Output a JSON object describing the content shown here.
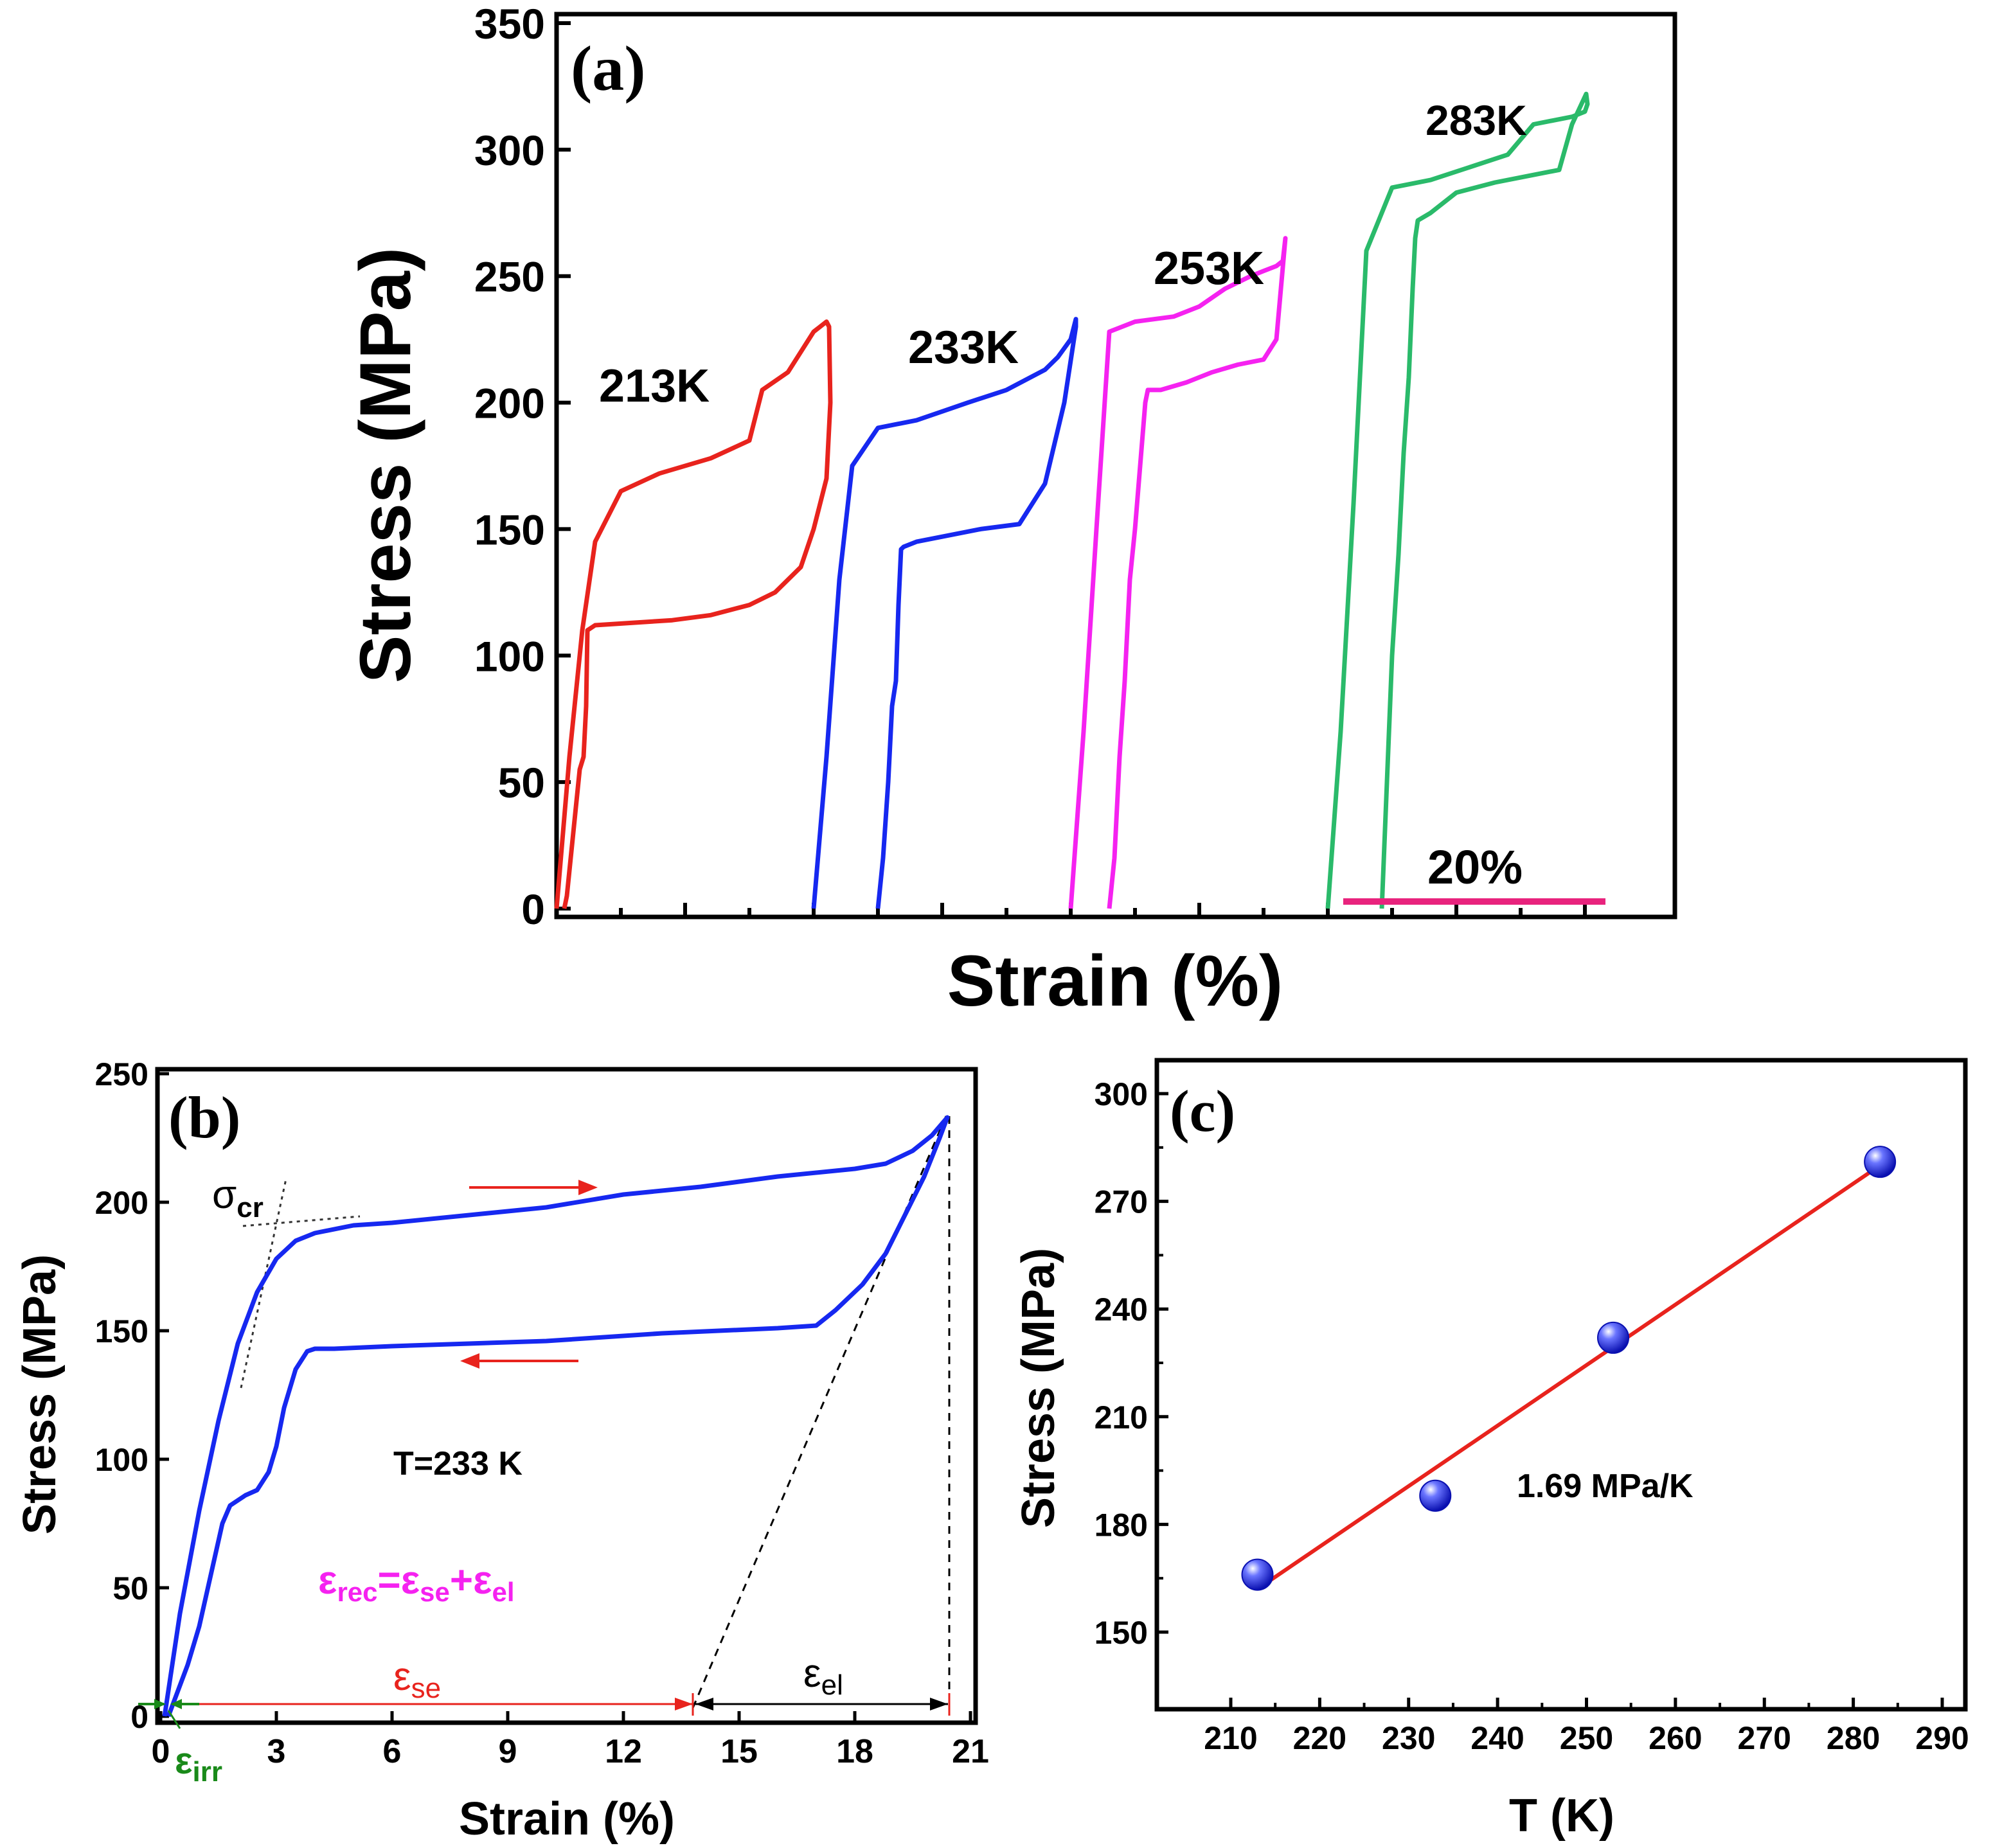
{
  "chart_data": [
    {
      "panel": "a",
      "type": "line",
      "panel_label": "(a)",
      "xlabel": "Strain (%)",
      "ylabel": "Stress (MPa)",
      "ylim": [
        0,
        350
      ],
      "yticks": [
        "0",
        "50",
        "100",
        "150",
        "200",
        "250",
        "300",
        "350"
      ],
      "scale_bar_label": "20%",
      "series": [
        {
          "name": "213K",
          "color": "#e8231d",
          "x": [
            0,
            1,
            2,
            3,
            5,
            8,
            12,
            15,
            16,
            18,
            19,
            20,
            21,
            21.2,
            21.3,
            21,
            20,
            19,
            17,
            15,
            12,
            9,
            6,
            3,
            2.4,
            2.3,
            2.1,
            1.8,
            1.5,
            1.2,
            0.8,
            0.6
          ],
          "y": [
            0,
            60,
            110,
            145,
            165,
            172,
            178,
            185,
            205,
            212,
            220,
            228,
            232,
            230,
            200,
            170,
            150,
            135,
            125,
            120,
            116,
            114,
            113,
            112,
            110,
            80,
            60,
            55,
            40,
            25,
            5,
            0
          ]
        },
        {
          "name": "233K",
          "color": "#1628f0",
          "x": [
            20,
            21,
            22,
            23,
            25,
            28,
            32,
            35,
            38,
            39,
            40,
            40.4,
            40.4,
            39.5,
            38,
            36,
            33,
            30,
            28,
            27,
            26.8,
            26.6,
            26.4,
            26.1,
            25.8,
            25.4,
            25.1,
            25.0
          ],
          "y": [
            0,
            60,
            130,
            175,
            190,
            193,
            200,
            205,
            213,
            218,
            225,
            233,
            230,
            200,
            168,
            152,
            150,
            147,
            145,
            143,
            142,
            120,
            90,
            80,
            50,
            20,
            5,
            0
          ]
        },
        {
          "name": "253K",
          "color": "#f522f0",
          "x": [
            40,
            41,
            42,
            43,
            45,
            48,
            50,
            52,
            54,
            55,
            56,
            56.5,
            56.7,
            56,
            55,
            53,
            51,
            49,
            47,
            46,
            45.8,
            45.4,
            45.0,
            44.6,
            44.2,
            43.8,
            43.4,
            43.0
          ],
          "y": [
            0,
            70,
            150,
            228,
            232,
            234,
            238,
            245,
            250,
            252,
            254,
            256,
            265,
            225,
            217,
            215,
            212,
            208,
            205,
            205,
            200,
            175,
            150,
            130,
            90,
            60,
            20,
            0
          ]
        },
        {
          "name": "283K",
          "color": "#2aba6a",
          "x": [
            60,
            61,
            62,
            63,
            65,
            68,
            71,
            74,
            76,
            79,
            80,
            80.2,
            80.1,
            79,
            78,
            76,
            73,
            70,
            68,
            67,
            66.8,
            66.6,
            66.3,
            65.9,
            65.5,
            65.0,
            64.6,
            64.2
          ],
          "y": [
            0,
            70,
            160,
            260,
            285,
            288,
            293,
            298,
            310,
            313,
            315,
            318,
            322,
            310,
            292,
            290,
            287,
            283,
            275,
            272,
            265,
            245,
            210,
            180,
            140,
            100,
            50,
            0
          ]
        }
      ]
    },
    {
      "panel": "b",
      "type": "line",
      "panel_label": "(b)",
      "xlabel": "Strain (%)",
      "ylabel": "Stress (MPa)",
      "xlim": [
        0,
        21
      ],
      "ylim": [
        0,
        250
      ],
      "xticks": [
        "0",
        "3",
        "6",
        "9",
        "12",
        "15",
        "18",
        "21"
      ],
      "yticks": [
        "0",
        "50",
        "100",
        "150",
        "200",
        "250"
      ],
      "series": [
        {
          "name": "T=233 K",
          "color": "#1628f0",
          "x": [
            0.1,
            0.5,
            1,
            1.5,
            2,
            2.5,
            3,
            3.5,
            4,
            5,
            6,
            8,
            10,
            12,
            14,
            16,
            18,
            18.8,
            19.5,
            20,
            20.4,
            20.2,
            19.8,
            19.3,
            18.8,
            18.2,
            17.5,
            17,
            16,
            13,
            10,
            8,
            6,
            4.5,
            4,
            3.8,
            3.5,
            3.2,
            3,
            2.8,
            2.5,
            2.2,
            2,
            1.8,
            1.6,
            1.3,
            1,
            0.7,
            0.4,
            0.2
          ],
          "y": [
            0,
            40,
            80,
            115,
            145,
            165,
            178,
            185,
            188,
            191,
            192,
            195,
            198,
            203,
            206,
            210,
            213,
            215,
            220,
            226,
            233,
            225,
            210,
            195,
            180,
            168,
            158,
            152,
            151,
            149,
            146,
            145,
            144,
            143,
            143,
            142,
            135,
            120,
            105,
            95,
            88,
            86,
            84,
            82,
            75,
            55,
            35,
            20,
            8,
            0
          ]
        }
      ],
      "annotations": {
        "sigma_cr": "σ",
        "sigma_cr_sub": "cr",
        "temperature": "T=233 K",
        "equation": {
          "e1": "ε",
          "s1": "rec",
          "eq": "=",
          "e2": "ε",
          "s2": "se",
          "plus": "+",
          "e3": "ε",
          "s3": "el"
        },
        "eps_se": {
          "main": "ε",
          "sub": "se"
        },
        "eps_el": {
          "main": "ε",
          "sub": "el"
        },
        "eps_irr": {
          "main": "ε",
          "sub": "irr"
        }
      },
      "colors": {
        "arrow": "#e8231d",
        "eq": "#f522f0",
        "eps_se": "#e8231d",
        "eps_el": "#000000",
        "eps_irr": "#1a8a1a"
      }
    },
    {
      "panel": "c",
      "type": "scatter",
      "panel_label": "(c)",
      "xlabel": "T (K)",
      "ylabel": "Stress (MPa)",
      "xlim": [
        205,
        295
      ],
      "ylim": [
        120,
        310
      ],
      "xticks": [
        "210",
        "220",
        "230",
        "240",
        "250",
        "260",
        "270",
        "280",
        "290"
      ],
      "yticks": [
        "150",
        "180",
        "210",
        "240",
        "270",
        "300"
      ],
      "x": [
        213,
        233,
        253,
        283
      ],
      "y": [
        166,
        188,
        232,
        281
      ],
      "fit": {
        "x": [
          213,
          283
        ],
        "y": [
          162,
          280
        ],
        "color": "#e8231d"
      },
      "fit_label": "1.69 MPa/K",
      "marker_color": "#1628f0"
    }
  ]
}
